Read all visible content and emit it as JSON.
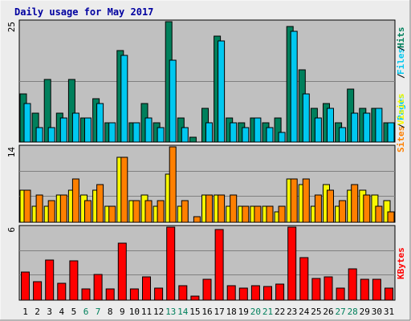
{
  "title": "Daily usage for May 2017",
  "colors": {
    "background": "#ececec",
    "plot": "#c0c0c0",
    "title": "#0000a0",
    "hits": "#00805c",
    "files": "#00c8f0",
    "visits": "#f8f800",
    "sites": "#ff8000",
    "kbytes": "#ff0000",
    "weekend": "#00805c",
    "weekday": "#000000"
  },
  "chart_data": [
    {
      "type": "bar",
      "panel": "hits-files",
      "ymax_label": "25",
      "ylim": [
        0,
        25
      ],
      "grid": true,
      "labels": [
        {
          "text": "Pages",
          "color": "#00c8f0"
        },
        {
          "text": "/",
          "color": "#000000"
        },
        {
          "text": "Files",
          "color": "#00c8f0"
        },
        {
          "text": "/",
          "color": "#000000"
        },
        {
          "text": "Hits",
          "color": "#00805c"
        }
      ],
      "categories": [
        "1",
        "2",
        "3",
        "4",
        "5",
        "6",
        "7",
        "8",
        "9",
        "10",
        "11",
        "12",
        "13",
        "14",
        "15",
        "16",
        "17",
        "18",
        "19",
        "20",
        "21",
        "22",
        "23",
        "24",
        "25",
        "26",
        "27",
        "28",
        "29",
        "30",
        "31"
      ],
      "series": [
        {
          "key": "hits",
          "values": [
            10,
            6,
            13,
            6,
            13,
            5,
            9,
            4,
            19,
            4,
            8,
            4,
            25,
            5,
            1,
            7,
            22,
            5,
            4,
            5,
            4,
            5,
            24,
            15,
            7,
            8,
            4,
            11,
            7,
            7,
            4
          ],
          "color": "#00805c"
        },
        {
          "key": "files",
          "values": [
            8,
            3,
            3,
            5,
            6,
            5,
            8,
            4,
            18,
            4,
            5,
            3,
            17,
            3,
            0,
            4,
            21,
            4,
            3,
            5,
            3,
            2,
            23,
            10,
            5,
            7,
            3,
            6,
            6,
            7,
            4
          ],
          "color": "#00c8f0"
        }
      ]
    },
    {
      "type": "bar",
      "panel": "visits-sites",
      "ymax_label": "14",
      "ylim": [
        0,
        14
      ],
      "grid": true,
      "labels": [
        {
          "text": "Sites",
          "color": "#ff8000"
        },
        {
          "text": "/",
          "color": "#000000"
        },
        {
          "text": "Visits",
          "color": "#f8f800"
        }
      ],
      "categories": [
        "1",
        "2",
        "3",
        "4",
        "5",
        "6",
        "7",
        "8",
        "9",
        "10",
        "11",
        "12",
        "13",
        "14",
        "15",
        "16",
        "17",
        "18",
        "19",
        "20",
        "21",
        "22",
        "23",
        "24",
        "25",
        "26",
        "27",
        "28",
        "29",
        "30",
        "31"
      ],
      "series": [
        {
          "key": "visits",
          "values": [
            6,
            3,
            3,
            5,
            6,
            5,
            6,
            3,
            12,
            4,
            5,
            3,
            9,
            3,
            0,
            5,
            5,
            3,
            3,
            3,
            3,
            2,
            8,
            7,
            3,
            7,
            3,
            6,
            6,
            5,
            4
          ],
          "color": "#f8f800"
        },
        {
          "key": "sites",
          "values": [
            6,
            5,
            4,
            5,
            8,
            4,
            7,
            3,
            12,
            4,
            4,
            4,
            14,
            4,
            1,
            5,
            5,
            5,
            3,
            3,
            3,
            3,
            8,
            8,
            5,
            6,
            4,
            7,
            5,
            3,
            2
          ],
          "color": "#ff8000"
        }
      ]
    },
    {
      "type": "bar",
      "panel": "kbytes",
      "ymax_label": "6",
      "ylim": [
        0,
        6
      ],
      "grid": true,
      "labels": [
        {
          "text": "KBytes",
          "color": "#ff0000"
        }
      ],
      "categories": [
        "1",
        "2",
        "3",
        "4",
        "5",
        "6",
        "7",
        "8",
        "9",
        "10",
        "11",
        "12",
        "13",
        "14",
        "15",
        "16",
        "17",
        "18",
        "19",
        "20",
        "21",
        "22",
        "23",
        "24",
        "25",
        "26",
        "27",
        "28",
        "29",
        "30",
        "31"
      ],
      "series": [
        {
          "key": "kbytes",
          "values": [
            2.3,
            1.5,
            3.3,
            1.4,
            3.2,
            0.9,
            2.1,
            0.9,
            4.7,
            0.9,
            1.9,
            1.0,
            6.0,
            1.2,
            0.3,
            1.7,
            5.8,
            1.2,
            1.0,
            1.2,
            1.1,
            1.3,
            6.0,
            3.5,
            1.8,
            1.9,
            1.0,
            2.6,
            1.7,
            1.7,
            1.0
          ],
          "color": "#ff0000"
        }
      ]
    }
  ],
  "x_axis": {
    "days": [
      "1",
      "2",
      "3",
      "4",
      "5",
      "6",
      "7",
      "8",
      "9",
      "10",
      "11",
      "12",
      "13",
      "14",
      "15",
      "16",
      "17",
      "18",
      "19",
      "20",
      "21",
      "22",
      "23",
      "24",
      "25",
      "26",
      "27",
      "28",
      "29",
      "30",
      "31"
    ],
    "weekend_days": [
      "6",
      "7",
      "13",
      "14",
      "20",
      "21",
      "27",
      "28"
    ]
  }
}
